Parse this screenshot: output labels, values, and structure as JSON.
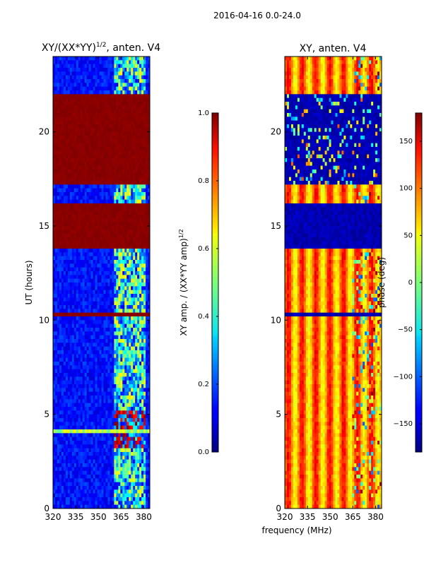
{
  "suptitle": "2016-04-16 0.0-24.0",
  "xlabel_shared": "frequency (MHz)",
  "colors": {
    "jet_dark_red": "#7f0000",
    "jet_dark_blue": "#00007f",
    "jet_blue": "#0000ff",
    "jet_cyan": "#00ffff",
    "jet_yellow": "#ffff00",
    "jet_red": "#ff0000",
    "jet_orange": "#ff8000"
  },
  "chart_data": [
    {
      "type": "heatmap",
      "title": "XY/(XX*YY)",
      "title_exponent": "1/2",
      "title_suffix": ", anten. V4",
      "xlabel": "",
      "ylabel": "UT (hours)",
      "xlim": [
        320,
        384
      ],
      "ylim": [
        0,
        24
      ],
      "xticks": [
        320,
        335,
        350,
        365,
        380
      ],
      "yticks": [
        0,
        5,
        10,
        15,
        20
      ],
      "colorbar": {
        "label": "XY amp. / (XX*YY amp)",
        "label_exponent": "1/2",
        "range": [
          0.0,
          1.0
        ],
        "ticks": [
          0.0,
          0.2,
          0.4,
          0.6,
          0.8,
          1.0
        ],
        "tick_labels": [
          "0.0",
          "0.2",
          "0.4",
          "0.6",
          "0.8",
          "1.0"
        ]
      },
      "saturated_bands_hours": [
        [
          10.1,
          10.45
        ],
        [
          13.8,
          16.1
        ],
        [
          17.2,
          22.0
        ]
      ],
      "bright_low_amp_band_hours": [
        3.9,
        4.2
      ]
    },
    {
      "type": "heatmap",
      "title": "XY, anten. V4",
      "xlabel": "",
      "ylabel": "",
      "xlim": [
        320,
        384
      ],
      "ylim": [
        0,
        24
      ],
      "xticks": [
        320,
        335,
        350,
        365,
        380
      ],
      "yticks": [
        0,
        5,
        10,
        15,
        20
      ],
      "colorbar": {
        "label": "phase (deg)",
        "range": [
          -180,
          180
        ],
        "ticks": [
          -150,
          -100,
          -50,
          0,
          50,
          100,
          150
        ],
        "tick_labels": [
          "−150",
          "−100",
          "−50",
          "0",
          "50",
          "100",
          "150"
        ]
      },
      "uniform_low_phase_bands_hours": [
        [
          10.1,
          10.45
        ],
        [
          13.8,
          16.1
        ],
        [
          17.2,
          22.0
        ]
      ]
    }
  ]
}
